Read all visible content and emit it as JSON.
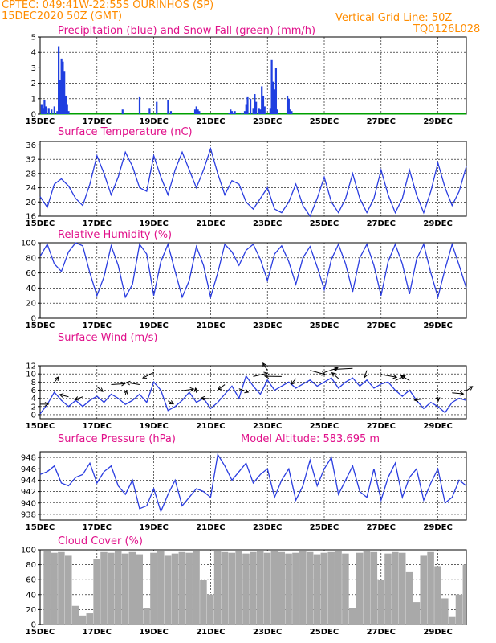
{
  "header": {
    "line1": "CPTEC:   049:41W-22:55S   OURINHOS (SP)",
    "line2": "15DEC2020 50Z (GMT)",
    "grid_note": "Vertical Grid Line: 50Z",
    "code": "TQ0126L028"
  },
  "colors": {
    "header": "#ff8c00",
    "title": "#e0108a",
    "line": "#2a3de0",
    "precip": "#1f3fe0",
    "snow": "#00a000",
    "cloud": "#a9a9a9"
  },
  "chart_data": [
    {
      "type": "bar",
      "title": "Precipitation (blue) and Snow Fall (green) (mm/h)",
      "xticks": [
        "15DEC",
        "17DEC",
        "19DEC",
        "21DEC",
        "23DEC",
        "25DEC",
        "27DEC",
        "29DEC"
      ],
      "xrange": [
        0,
        15
      ],
      "ylim": [
        0,
        5
      ],
      "yticks": [
        0,
        1,
        2,
        3,
        4,
        5
      ],
      "series": [
        {
          "name": "Precipitation",
          "x": [
            0.05,
            0.1,
            0.15,
            0.2,
            0.3,
            0.4,
            0.5,
            0.6,
            0.65,
            0.7,
            0.75,
            0.8,
            0.85,
            0.9,
            0.95,
            1.0,
            2.9,
            3.5,
            3.85,
            4.1,
            4.5,
            4.6,
            5.45,
            5.5,
            5.55,
            5.6,
            6.65,
            6.7,
            6.75,
            6.8,
            6.85,
            7.1,
            7.2,
            7.25,
            7.3,
            7.4,
            7.5,
            7.55,
            7.6,
            7.7,
            7.75,
            7.8,
            7.85,
            7.9,
            8.1,
            8.15,
            8.2,
            8.25,
            8.3,
            8.35,
            8.7,
            8.75,
            8.8,
            8.85
          ],
          "values": [
            0.6,
            0.4,
            0.9,
            0.5,
            0.4,
            0.3,
            0.5,
            0.2,
            4.4,
            2.2,
            3.6,
            3.4,
            2.8,
            1.2,
            0.6,
            0.2,
            0.3,
            1.1,
            0.4,
            0.8,
            0.9,
            0.2,
            0.3,
            0.5,
            0.3,
            0.2,
            0.1,
            0.3,
            0.2,
            0.1,
            0.2,
            0.1,
            0.2,
            0.6,
            1.1,
            1.0,
            0.4,
            1.3,
            0.8,
            0.4,
            0.3,
            1.8,
            1.2,
            0.5,
            0.4,
            3.5,
            2.1,
            1.6,
            3.0,
            0.3,
            1.2,
            1.0,
            0.3,
            0.2
          ]
        },
        {
          "name": "Snow Fall",
          "x": [],
          "values": []
        }
      ]
    },
    {
      "type": "line",
      "title": "Surface Temperature (nC)",
      "xticks": [
        "15DEC",
        "17DEC",
        "19DEC",
        "21DEC",
        "23DEC",
        "25DEC",
        "27DEC",
        "29DEC"
      ],
      "xrange": [
        0,
        15
      ],
      "ylim": [
        16,
        37
      ],
      "yticks": [
        16,
        20,
        24,
        28,
        32,
        36
      ],
      "x": [
        0,
        0.25,
        0.5,
        0.75,
        1,
        1.25,
        1.5,
        1.75,
        2,
        2.25,
        2.5,
        2.75,
        3,
        3.25,
        3.5,
        3.75,
        4,
        4.25,
        4.5,
        4.75,
        5,
        5.25,
        5.5,
        5.75,
        6,
        6.25,
        6.5,
        6.75,
        7,
        7.25,
        7.5,
        7.75,
        8,
        8.25,
        8.5,
        8.75,
        9,
        9.25,
        9.5,
        9.75,
        10,
        10.25,
        10.5,
        10.75,
        11,
        11.25,
        11.5,
        11.75,
        12,
        12.25,
        12.5,
        12.75,
        13,
        13.25,
        13.5,
        13.75,
        14,
        14.25,
        14.5,
        14.75,
        15
      ],
      "values": [
        21.5,
        18.5,
        25,
        26.5,
        24.5,
        21,
        19,
        25,
        33,
        28,
        22,
        27,
        34,
        30,
        24,
        23,
        33,
        27,
        22,
        29,
        34,
        29,
        24,
        29,
        35,
        28,
        22,
        26,
        25,
        20,
        18,
        21,
        24,
        18,
        17,
        20,
        25,
        19,
        16,
        21,
        27,
        20,
        17,
        21,
        28,
        21,
        17,
        21,
        29,
        22,
        17,
        21,
        29,
        22,
        17,
        23,
        31,
        24,
        19,
        23,
        30
      ]
    },
    {
      "type": "line",
      "title": "Relative Humidity (%)",
      "xticks": [
        "15DEC",
        "17DEC",
        "19DEC",
        "21DEC",
        "23DEC",
        "25DEC",
        "27DEC",
        "29DEC"
      ],
      "xrange": [
        0,
        15
      ],
      "ylim": [
        0,
        100
      ],
      "yticks": [
        0,
        20,
        40,
        60,
        80,
        100
      ],
      "x": [
        0,
        0.25,
        0.5,
        0.75,
        1,
        1.25,
        1.5,
        1.75,
        2,
        2.25,
        2.5,
        2.75,
        3,
        3.25,
        3.5,
        3.75,
        4,
        4.25,
        4.5,
        4.75,
        5,
        5.25,
        5.5,
        5.75,
        6,
        6.25,
        6.5,
        6.75,
        7,
        7.25,
        7.5,
        7.75,
        8,
        8.25,
        8.5,
        8.75,
        9,
        9.25,
        9.5,
        9.75,
        10,
        10.25,
        10.5,
        10.75,
        11,
        11.25,
        11.5,
        11.75,
        12,
        12.25,
        12.5,
        12.75,
        13,
        13.25,
        13.5,
        13.75,
        14,
        14.25,
        14.5,
        14.75,
        15
      ],
      "values": [
        82,
        98,
        72,
        62,
        88,
        100,
        96,
        60,
        30,
        55,
        96,
        70,
        28,
        45,
        98,
        85,
        30,
        75,
        98,
        62,
        28,
        50,
        95,
        70,
        28,
        60,
        98,
        88,
        70,
        90,
        98,
        78,
        50,
        85,
        96,
        75,
        45,
        80,
        95,
        68,
        38,
        78,
        98,
        72,
        35,
        80,
        98,
        70,
        30,
        75,
        98,
        72,
        32,
        78,
        98,
        60,
        28,
        65,
        98,
        70,
        40
      ]
    },
    {
      "type": "line",
      "title": "Surface Wind (m/s)",
      "xticks": [
        "15DEC",
        "17DEC",
        "19DEC",
        "21DEC",
        "23DEC",
        "25DEC",
        "27DEC",
        "29DEC"
      ],
      "xrange": [
        0,
        15
      ],
      "ylim": [
        -1,
        12
      ],
      "yticks": [
        0,
        2,
        4,
        6,
        8,
        10,
        12
      ],
      "x": [
        0,
        0.25,
        0.5,
        0.75,
        1,
        1.25,
        1.5,
        1.75,
        2,
        2.25,
        2.5,
        2.75,
        3,
        3.25,
        3.5,
        3.75,
        4,
        4.25,
        4.5,
        4.75,
        5,
        5.25,
        5.5,
        5.75,
        6,
        6.25,
        6.5,
        6.75,
        7,
        7.25,
        7.5,
        7.75,
        8,
        8.25,
        8.5,
        8.75,
        9,
        9.25,
        9.5,
        9.75,
        10,
        10.25,
        10.5,
        10.75,
        11,
        11.25,
        11.5,
        11.75,
        12,
        12.25,
        12.5,
        12.75,
        13,
        13.25,
        13.5,
        13.75,
        14,
        14.25,
        14.5,
        14.75,
        15
      ],
      "values": [
        0.2,
        2.5,
        5.5,
        3.5,
        2,
        3.5,
        2,
        3.5,
        4.5,
        3,
        5,
        4,
        2.5,
        3.5,
        5,
        3,
        8,
        6,
        1,
        2,
        3.5,
        5.5,
        3,
        4,
        1.5,
        3,
        5,
        7,
        4,
        9.5,
        7,
        5,
        8.5,
        6,
        7,
        8,
        6.5,
        7.5,
        8.5,
        7,
        8,
        9,
        6.5,
        8,
        9,
        7,
        8.5,
        6.5,
        7.5,
        8,
        6,
        4.5,
        6,
        3.5,
        1.5,
        3,
        2,
        0.5,
        3,
        4,
        3.5
      ],
      "vectors_note": "wind barbs drawn as arrows"
    },
    {
      "type": "line",
      "title": "Surface Pressure (hPa)",
      "annotation": "Model Altitude: 583.695  m",
      "xticks": [
        "15DEC",
        "17DEC",
        "19DEC",
        "21DEC",
        "23DEC",
        "25DEC",
        "27DEC",
        "29DEC"
      ],
      "xrange": [
        0,
        15
      ],
      "ylim": [
        937,
        949
      ],
      "yticks": [
        938,
        940,
        942,
        944,
        946,
        948
      ],
      "x": [
        0,
        0.25,
        0.5,
        0.75,
        1,
        1.25,
        1.5,
        1.75,
        2,
        2.25,
        2.5,
        2.75,
        3,
        3.25,
        3.5,
        3.75,
        4,
        4.25,
        4.5,
        4.75,
        5,
        5.25,
        5.5,
        5.75,
        6,
        6.25,
        6.5,
        6.75,
        7,
        7.25,
        7.5,
        7.75,
        8,
        8.25,
        8.5,
        8.75,
        9,
        9.25,
        9.5,
        9.75,
        10,
        10.25,
        10.5,
        10.75,
        11,
        11.25,
        11.5,
        11.75,
        12,
        12.25,
        12.5,
        12.75,
        13,
        13.25,
        13.5,
        13.75,
        14,
        14.25,
        14.5,
        14.75,
        15
      ],
      "values": [
        945,
        945.5,
        946.5,
        943.5,
        943,
        944.5,
        945,
        947,
        943.5,
        945.5,
        946.5,
        943,
        941.5,
        944,
        939,
        939.5,
        942.5,
        938.5,
        941.5,
        944,
        939.5,
        941,
        942.5,
        942,
        941,
        948.5,
        946.5,
        944,
        945.5,
        947,
        943.5,
        945,
        946,
        941,
        944,
        946,
        940.5,
        943,
        947.5,
        943,
        946,
        948,
        941.5,
        944,
        946.5,
        942,
        941,
        946,
        940.5,
        944.5,
        947,
        941,
        944.5,
        946,
        940.5,
        943.5,
        946,
        940,
        941,
        944,
        943
      ]
    },
    {
      "type": "bar",
      "title": "Cloud Cover (%)",
      "xticks": [
        "15DEC",
        "17DEC",
        "19DEC",
        "21DEC",
        "23DEC",
        "25DEC",
        "27DEC",
        "29DEC"
      ],
      "xrange": [
        0,
        15
      ],
      "ylim": [
        0,
        100
      ],
      "yticks": [
        0,
        20,
        40,
        60,
        80,
        100
      ],
      "x": [
        0,
        0.25,
        0.5,
        0.75,
        1,
        1.25,
        1.5,
        1.75,
        2,
        2.25,
        2.5,
        2.75,
        3,
        3.25,
        3.5,
        3.75,
        4,
        4.25,
        4.5,
        4.75,
        5,
        5.25,
        5.5,
        5.75,
        6,
        6.25,
        6.5,
        6.75,
        7,
        7.25,
        7.5,
        7.75,
        8,
        8.25,
        8.5,
        8.75,
        9,
        9.25,
        9.5,
        9.75,
        10,
        10.25,
        10.5,
        10.75,
        11,
        11.25,
        11.5,
        11.75,
        12,
        12.25,
        12.5,
        12.75,
        13,
        13.25,
        13.5,
        13.75,
        14,
        14.25,
        14.5,
        14.75,
        15
      ],
      "values": [
        95,
        98,
        96,
        97,
        92,
        25,
        12,
        15,
        88,
        97,
        96,
        98,
        95,
        97,
        94,
        22,
        96,
        98,
        92,
        95,
        97,
        96,
        98,
        60,
        40,
        98,
        97,
        96,
        98,
        95,
        97,
        98,
        96,
        98,
        97,
        95,
        96,
        98,
        97,
        94,
        96,
        97,
        98,
        95,
        22,
        96,
        98,
        97,
        60,
        95,
        97,
        96,
        70,
        30,
        92,
        97,
        78,
        35,
        10,
        40,
        80
      ]
    }
  ]
}
